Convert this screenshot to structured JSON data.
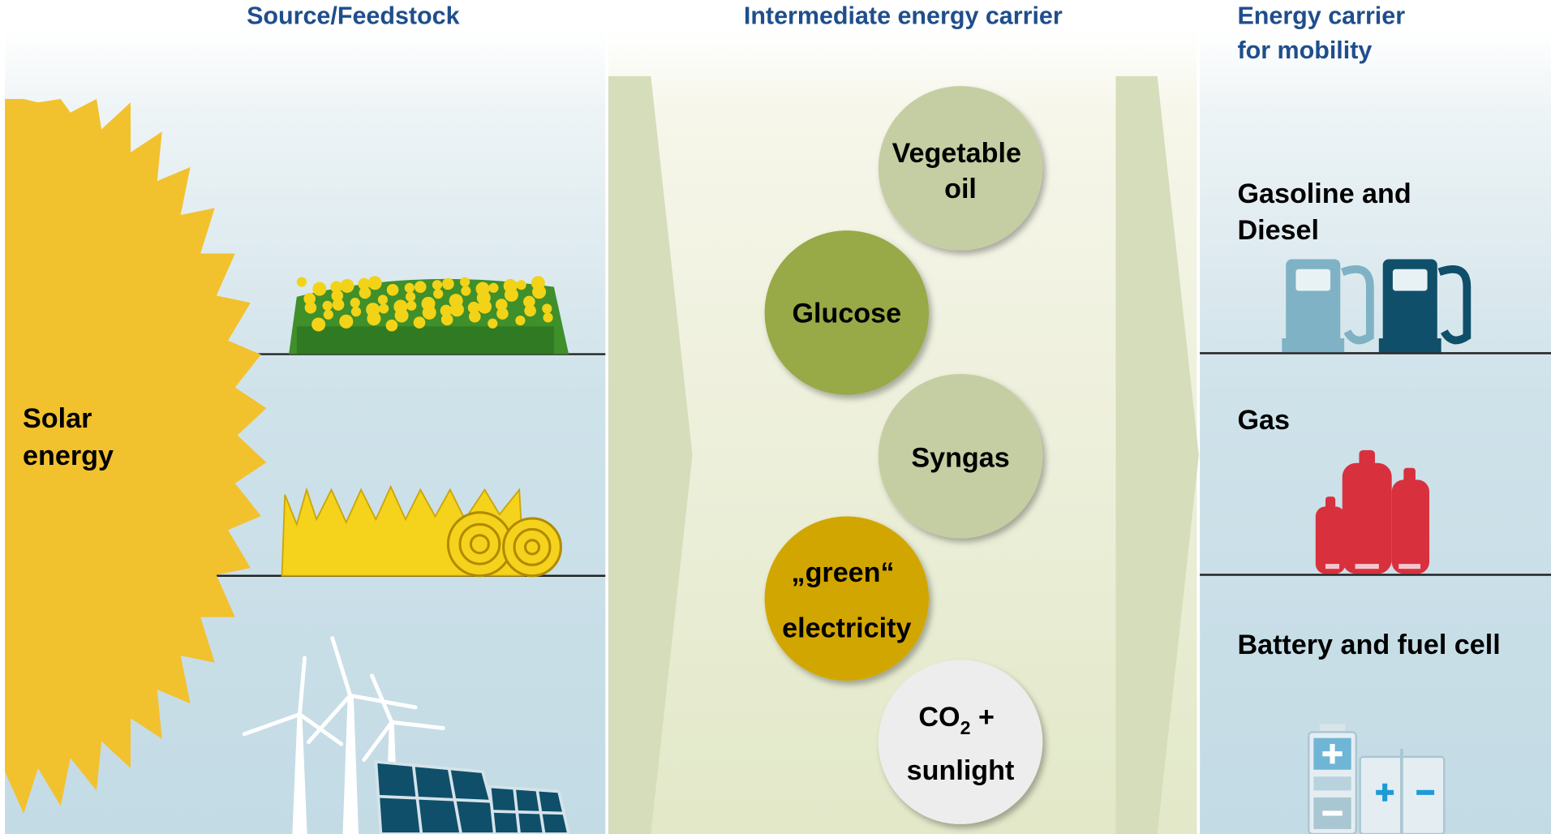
{
  "headers": {
    "source": "Source/Feedstock",
    "intermediate": "Intermediate energy carrier",
    "mobility": [
      "Energy carrier",
      "for mobility"
    ]
  },
  "source": {
    "label": [
      "Solar",
      "energy"
    ]
  },
  "intermediates": [
    {
      "lines": [
        "Vegetable",
        "oil"
      ]
    },
    {
      "lines": [
        "Glucose"
      ]
    },
    {
      "lines": [
        "Syngas"
      ]
    },
    {
      "lines": [
        "„green“",
        "electricity"
      ]
    },
    {
      "formula": {
        "base": "CO",
        "subscript": "2",
        "suffix": " +"
      },
      "lines": [
        "sunlight"
      ]
    }
  ],
  "mobility": [
    {
      "lines": [
        "Gasoline and",
        "Diesel"
      ]
    },
    {
      "lines": [
        "Gas"
      ]
    },
    {
      "lines": [
        "Battery and fuel cell"
      ]
    }
  ]
}
